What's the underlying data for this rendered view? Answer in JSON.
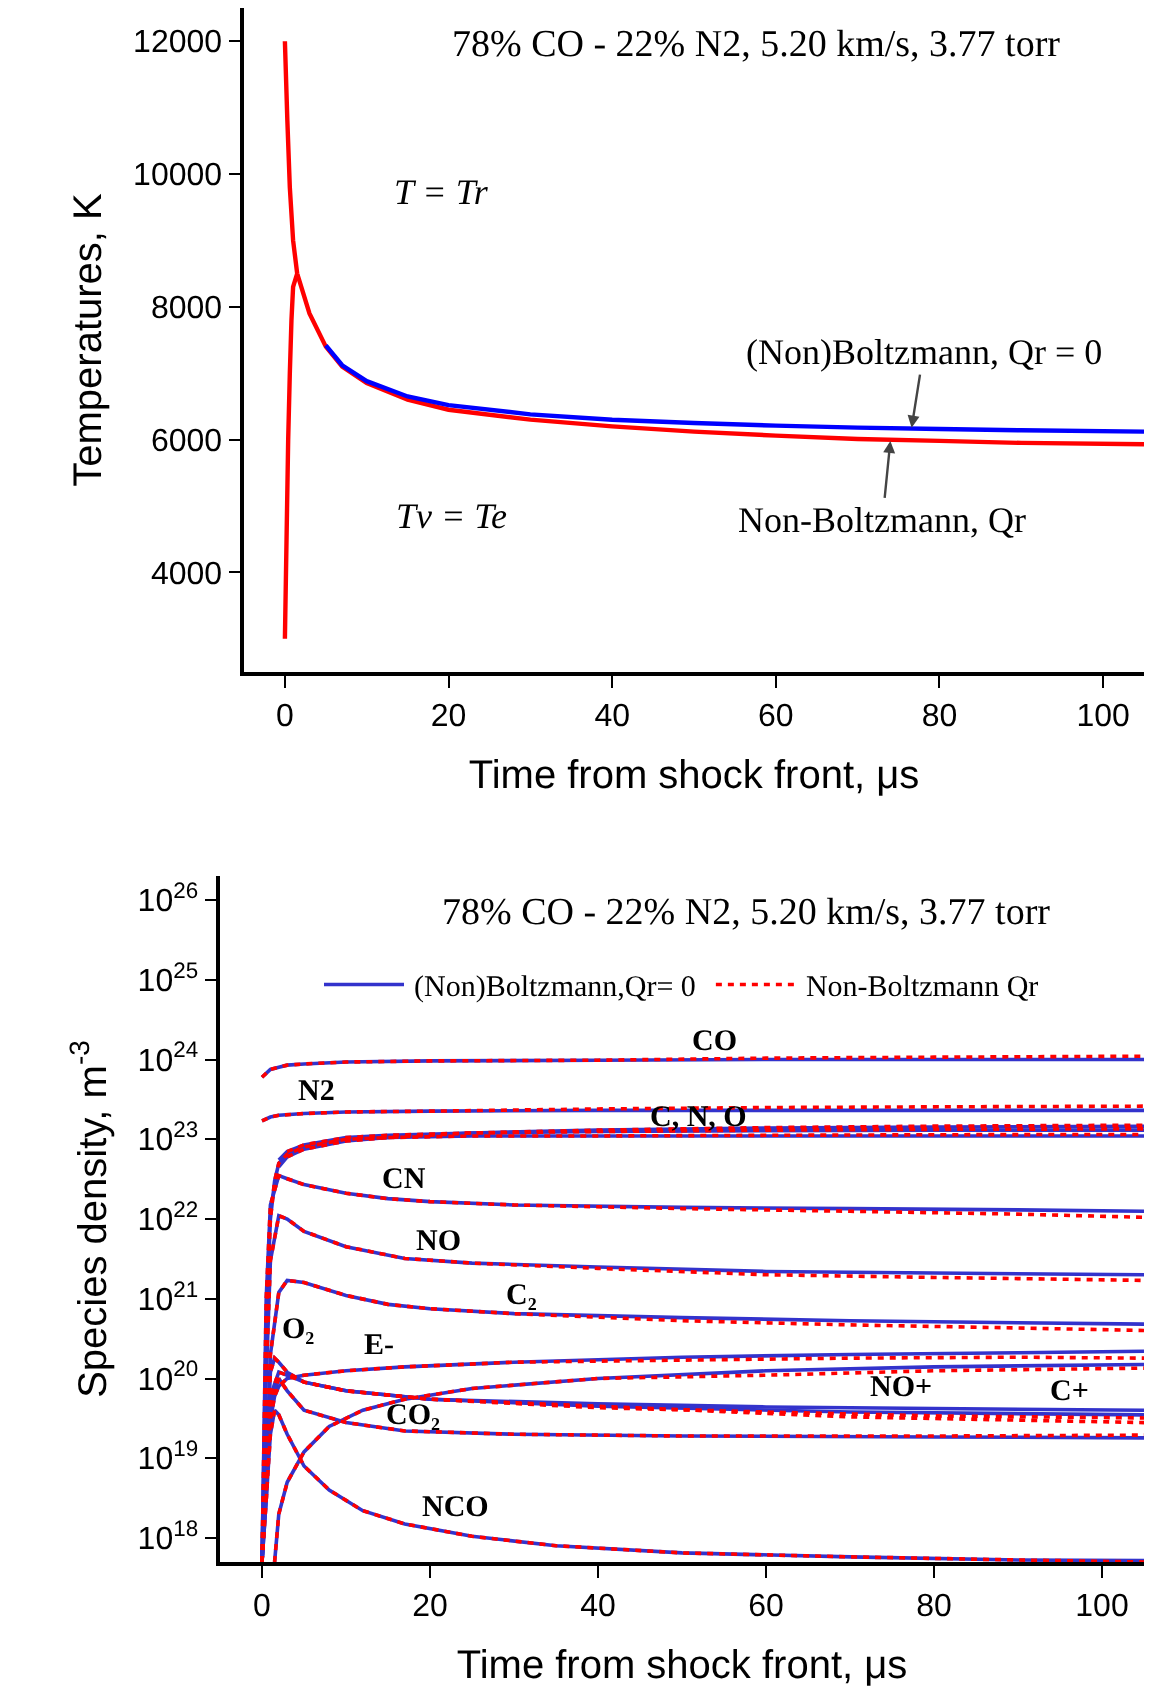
{
  "chart_data": [
    {
      "type": "line",
      "title": "78% CO - 22% N2, 5.20 km/s, 3.77 torr",
      "xlabel": "Time from shock front, μs",
      "ylabel": "Temperatures, K",
      "xlim": [
        -5,
        105
      ],
      "xticks": [
        0,
        20,
        40,
        60,
        80,
        100
      ],
      "ylim": [
        2500,
        12500
      ],
      "yticks": [
        4000,
        6000,
        8000,
        10000,
        12000
      ],
      "marker": "none",
      "line_style": "solid",
      "series": [
        {
          "color": "#ff0000",
          "x": [
            0,
            0.3,
            0.6,
            1,
            1.5,
            2,
            3,
            5,
            7,
            10,
            15,
            20,
            30,
            40,
            50,
            60,
            70,
            80,
            90,
            105
          ],
          "values": [
            12000,
            10800,
            9800,
            9000,
            8500,
            8300,
            7900,
            7400,
            7100,
            6850,
            6600,
            6450,
            6300,
            6200,
            6120,
            6060,
            6010,
            5980,
            5950,
            5930
          ]
        },
        {
          "color": "#ff0000",
          "x": [
            0,
            0.2,
            0.4,
            0.6,
            0.8,
            1,
            1.5
          ],
          "values": [
            3000,
            4500,
            6000,
            7000,
            7800,
            8300,
            8500
          ]
        },
        {
          "color": "#0000ff",
          "x": [
            5,
            7,
            10,
            15,
            20,
            30,
            40,
            50,
            60,
            70,
            80,
            90,
            105
          ],
          "values": [
            7420,
            7120,
            6880,
            6650,
            6520,
            6380,
            6300,
            6250,
            6210,
            6180,
            6160,
            6140,
            6120
          ]
        }
      ],
      "annotations": [
        "T = Tr",
        "Tv = Te",
        {
          "text": "(Non)Boltzmann, Qr = 0",
          "x": 76.6,
          "y": 6180
        },
        {
          "text": "Non-Boltzmann, Qr",
          "x": 74,
          "y": 5980
        }
      ]
    },
    {
      "type": "line",
      "title": "78% CO - 22% N2, 5.20 km/s, 3.77 torr",
      "xlabel": "Time from shock front, μs",
      "ylabel": "Species density, m$^{-3}$",
      "xlim": [
        -5,
        105
      ],
      "xticks": [
        0,
        20,
        40,
        60,
        80,
        100
      ],
      "ylim": [
        5e+17,
        2e+26
      ],
      "log": true,
      "yticks": [
        {
          "value": 1e+18,
          "label": "10$^{18}$"
        },
        {
          "value": 1e+19,
          "label": "10$^{19}$"
        },
        {
          "value": 1e+20,
          "label": "10$^{20}$"
        },
        {
          "value": 1e+21,
          "label": "10$^{21}$"
        },
        {
          "value": 1e+22,
          "label": "10$^{22}$"
        },
        {
          "value": 1e+23,
          "label": "10$^{23}$"
        },
        {
          "value": 1e+24,
          "label": "10$^{24}$"
        },
        {
          "value": 1e+25,
          "label": "10$^{25}$"
        },
        {
          "value": 1e+26,
          "label": "10$^{26}$"
        }
      ],
      "marker": "none",
      "legend": "top",
      "series": [
        {
          "name": "(Non)Boltzmann,Qr= 0",
          "color": "#3333cc",
          "line_style": "solid",
          "x": [
            0,
            1,
            2,
            3,
            5,
            10,
            20,
            40,
            60,
            80,
            105
          ],
          "values": [
            6e+23,
            7.5e+23,
            8e+23,
            8.5e+23,
            8.8e+23,
            9.3e+23,
            9.6e+23,
            9.8e+23,
            1e+24,
            1e+24,
            1e+24
          ]
        },
        {
          "color": "#3333cc",
          "line_style": "solid",
          "x": [
            0,
            1,
            2,
            5,
            10,
            20,
            40,
            60,
            80,
            105
          ],
          "values": [
            1.7e+23,
            1.9e+23,
            2e+23,
            2.1e+23,
            2.2e+23,
            2.25e+23,
            2.3e+23,
            2.3e+23,
            2.3e+23,
            2.3e+23
          ]
        },
        {
          "color": "#3333cc",
          "line_style": "solid",
          "x": [
            0,
            0.5,
            1,
            1.5,
            2,
            3,
            5,
            10,
            15,
            25,
            40,
            60,
            80,
            105
          ],
          "values": [
            5e+17,
            5e+20,
            1e+22,
            3e+22,
            5e+22,
            6.5e+22,
            8e+22,
            1e+23,
            1.05e+23,
            1.1e+23,
            1.1e+23,
            1.1e+23,
            1.1e+23,
            1.1e+23
          ]
        },
        {
          "color": "#3333cc",
          "line_style": "solid",
          "x": [
            2,
            3,
            5,
            10,
            15,
            25,
            40,
            60,
            80,
            105
          ],
          "values": [
            5.5e+22,
            7e+22,
            8.5e+22,
            1.05e+23,
            1.12e+23,
            1.2e+23,
            1.25e+23,
            1.28e+23,
            1.3e+23,
            1.3e+23
          ]
        },
        {
          "color": "#3333cc",
          "line_style": "solid",
          "x": [
            2,
            3,
            5,
            10,
            15,
            25,
            40,
            60,
            80,
            105
          ],
          "values": [
            4.5e+22,
            6e+22,
            7.5e+22,
            9.5e+22,
            1.05e+23,
            1.2e+23,
            1.3e+23,
            1.38e+23,
            1.42e+23,
            1.45e+23
          ]
        },
        {
          "color": "#3333cc",
          "line_style": "solid",
          "x": [
            0,
            0.5,
            1,
            2,
            3,
            5,
            10,
            15,
            20,
            30,
            50,
            70,
            90,
            105
          ],
          "values": [
            5e+17,
            1e+21,
            1.5e+22,
            3.5e+22,
            3.2e+22,
            2.7e+22,
            2.1e+22,
            1.8e+22,
            1.65e+22,
            1.5e+22,
            1.4e+22,
            1.35e+22,
            1.3e+22,
            1.25e+22
          ]
        },
        {
          "color": "#3333cc",
          "line_style": "solid",
          "x": [
            0,
            0.5,
            1,
            2,
            3,
            5,
            10,
            17,
            25,
            40,
            60,
            80,
            105
          ],
          "values": [
            5e+17,
            1e+20,
            3e+21,
            1.1e+22,
            1e+22,
            7e+21,
            4.5e+21,
            3.2e+21,
            2.8e+21,
            2.5e+21,
            2.2e+21,
            2.1e+21,
            2e+21
          ]
        },
        {
          "color": "#3333cc",
          "line_style": "solid",
          "x": [
            0,
            0.5,
            1,
            2,
            3,
            5,
            10,
            15,
            20,
            30,
            50,
            70,
            90,
            105
          ],
          "values": [
            5e+17,
            5e+18,
            2e+20,
            1.2e+21,
            1.7e+21,
            1.6e+21,
            1.1e+21,
            8.5e+20,
            7.5e+20,
            6.5e+20,
            5.8e+20,
            5.3e+20,
            5e+20,
            4.8e+20
          ]
        },
        {
          "color": "#3333cc",
          "line_style": "solid",
          "x": [
            0,
            0.5,
            1,
            1.5,
            2,
            3,
            5,
            10,
            20,
            40,
            70,
            105
          ],
          "values": [
            5e+17,
            1e+19,
            1.2e+20,
            1.8e+20,
            1.6e+20,
            1.2e+20,
            9e+19,
            7e+19,
            5.5e+19,
            4.5e+19,
            3.8e+19,
            3.5e+19
          ]
        },
        {
          "color": "#3333cc",
          "line_style": "solid",
          "x": [
            0,
            0.5,
            1,
            1.5,
            2,
            3,
            5,
            10,
            17,
            30,
            50,
            70,
            90,
            105
          ],
          "values": [
            5e+17,
            5e+18,
            3e+19,
            6e+19,
            8e+19,
            1e+20,
            1.1e+20,
            1.25e+20,
            1.4e+20,
            1.6e+20,
            1.85e+20,
            2e+20,
            2.1e+20,
            2.2e+20
          ]
        },
        {
          "color": "#3333cc",
          "line_style": "solid",
          "x": [
            1.5,
            2,
            3,
            5,
            8,
            12,
            17,
            25,
            40,
            60,
            80,
            105
          ],
          "values": [
            5e+17,
            2e+18,
            5e+18,
            1.2e+19,
            2.5e+19,
            4e+19,
            5.5e+19,
            7.5e+19,
            1e+20,
            1.25e+20,
            1.4e+20,
            1.5e+20
          ]
        },
        {
          "color": "#3333cc",
          "line_style": "solid",
          "x": [
            0,
            0.5,
            1,
            2,
            3,
            5,
            10,
            20,
            40,
            60,
            80,
            105
          ],
          "values": [
            5e+17,
            5e+18,
            6e+19,
            1.2e+20,
            1.1e+20,
            9e+19,
            7e+19,
            5.5e+19,
            4.8e+19,
            4.4e+19,
            4.2e+19,
            4e+19
          ]
        },
        {
          "color": "#3333cc",
          "line_style": "solid",
          "x": [
            0,
            0.5,
            1,
            2,
            3,
            5,
            10,
            17,
            30,
            50,
            80,
            105
          ],
          "values": [
            5e+17,
            3e+18,
            5e+19,
            1e+20,
            7e+19,
            4e+19,
            2.8e+19,
            2.2e+19,
            2e+19,
            1.9e+19,
            1.85e+19,
            1.8e+19
          ]
        },
        {
          "color": "#3333cc",
          "line_style": "solid",
          "x": [
            0,
            0.5,
            1,
            1.5,
            2,
            3,
            5,
            8,
            12,
            17,
            25,
            35,
            50,
            70,
            90,
            105
          ],
          "values": [
            5e+17,
            3e+18,
            2e+19,
            4e+19,
            3.5e+19,
            2e+19,
            8e+18,
            4e+18,
            2.2e+18,
            1.5e+18,
            1.05e+18,
            8e+17,
            6.5e+17,
            5.8e+17,
            5.3e+17,
            5.2e+17
          ]
        },
        {
          "name": "Non-Boltzmann Qr",
          "color": "#ff0000",
          "line_style": "dotted",
          "x": [
            0,
            1,
            2,
            3,
            5,
            10,
            20,
            40,
            60,
            80,
            105
          ],
          "values": [
            6e+23,
            7.5e+23,
            8e+23,
            8.5e+23,
            8.8e+23,
            9.3e+23,
            9.6e+23,
            9.8e+23,
            1.04e+24,
            1.07e+24,
            1.1e+24
          ]
        },
        {
          "color": "#ff0000",
          "line_style": "dotted",
          "x": [
            0,
            1,
            2,
            5,
            10,
            20,
            40,
            60,
            80,
            105
          ],
          "values": [
            1.7e+23,
            1.9e+23,
            2e+23,
            2.1e+23,
            2.2e+23,
            2.25e+23,
            2.4e+23,
            2.5e+23,
            2.55e+23,
            2.6e+23
          ]
        },
        {
          "color": "#ff0000",
          "line_style": "dotted",
          "x": [
            0.5,
            1,
            1.5,
            2,
            3,
            5,
            10,
            15,
            25,
            40,
            60,
            80,
            105
          ],
          "values": [
            5e+20,
            1e+22,
            3e+22,
            5e+22,
            6.5e+22,
            8e+22,
            1e+23,
            1.05e+23,
            1.1e+23,
            1.1e+23,
            1.12e+23,
            1.14e+23,
            1.15e+23
          ]
        },
        {
          "color": "#ff0000",
          "line_style": "dotted",
          "x": [
            3,
            5,
            10,
            15,
            25,
            40,
            60,
            80,
            105
          ],
          "values": [
            7e+22,
            8.5e+22,
            1.05e+23,
            1.12e+23,
            1.2e+23,
            1.25e+23,
            1.3e+23,
            1.33e+23,
            1.35e+23
          ]
        },
        {
          "color": "#ff0000",
          "line_style": "dotted",
          "x": [
            3,
            5,
            10,
            15,
            25,
            40,
            60,
            80,
            105
          ],
          "values": [
            6e+22,
            7.5e+22,
            9.5e+22,
            1.05e+23,
            1.2e+23,
            1.3e+23,
            1.4e+23,
            1.46e+23,
            1.5e+23
          ]
        },
        {
          "color": "#ff0000",
          "line_style": "dotted",
          "x": [
            0,
            0.5,
            1,
            2,
            3,
            5,
            10,
            15,
            20,
            30,
            50,
            70,
            90,
            105
          ],
          "values": [
            5e+17,
            1e+21,
            1.5e+22,
            3.5e+22,
            3.2e+22,
            2.7e+22,
            2.1e+22,
            1.8e+22,
            1.65e+22,
            1.5e+22,
            1.35e+22,
            1.25e+22,
            1.15e+22,
            1.05e+22
          ]
        },
        {
          "color": "#ff0000",
          "line_style": "dotted",
          "x": [
            0,
            0.5,
            1,
            2,
            3,
            5,
            10,
            17,
            25,
            40,
            60,
            80,
            105
          ],
          "values": [
            5e+17,
            1e+20,
            3e+21,
            1.1e+22,
            1e+22,
            7e+21,
            4.5e+21,
            3.2e+21,
            2.8e+21,
            2.4e+21,
            2e+21,
            1.85e+21,
            1.7e+21
          ]
        },
        {
          "color": "#ff0000",
          "line_style": "dotted",
          "x": [
            0,
            0.5,
            1,
            2,
            3,
            5,
            10,
            15,
            20,
            30,
            50,
            70,
            90,
            105
          ],
          "values": [
            5e+17,
            5e+18,
            2e+20,
            1.2e+21,
            1.7e+21,
            1.6e+21,
            1.1e+21,
            8.5e+20,
            7.5e+20,
            6.5e+20,
            5.3e+20,
            4.7e+20,
            4.3e+20,
            4e+20
          ]
        },
        {
          "color": "#ff0000",
          "line_style": "dotted",
          "x": [
            0,
            0.5,
            1,
            1.5,
            2,
            3,
            5,
            10,
            20,
            40,
            70,
            105
          ],
          "values": [
            5e+17,
            1e+19,
            1.2e+20,
            1.8e+20,
            1.6e+20,
            1.2e+20,
            9e+19,
            7e+19,
            5.5e+19,
            4.5e+19,
            3.3e+19,
            2.8e+19
          ]
        },
        {
          "color": "#ff0000",
          "line_style": "dotted",
          "x": [
            0,
            0.5,
            1,
            1.5,
            2,
            3,
            5,
            10,
            17,
            30,
            50,
            70,
            90,
            105
          ],
          "values": [
            5e+17,
            5e+18,
            3e+19,
            6e+19,
            8e+19,
            1e+20,
            1.1e+20,
            1.25e+20,
            1.4e+20,
            1.6e+20,
            1.7e+20,
            1.8e+20,
            1.85e+20,
            1.8e+20
          ]
        },
        {
          "color": "#ff0000",
          "line_style": "dotted",
          "x": [
            1.5,
            2,
            3,
            5,
            8,
            12,
            17,
            25,
            40,
            60,
            80,
            105
          ],
          "values": [
            5e+17,
            2e+18,
            5e+18,
            1.2e+19,
            2.5e+19,
            4e+19,
            5.5e+19,
            7.5e+19,
            1e+20,
            1.1e+20,
            1.25e+20,
            1.35e+20
          ]
        },
        {
          "color": "#ff0000",
          "line_style": "dotted",
          "x": [
            0,
            0.5,
            1,
            2,
            3,
            5,
            10,
            20,
            40,
            60,
            80,
            105
          ],
          "values": [
            5e+17,
            5e+18,
            6e+19,
            1.2e+20,
            1.1e+20,
            9e+19,
            7e+19,
            5.5e+19,
            4.3e+19,
            3.8e+19,
            3.4e+19,
            3.2e+19
          ]
        },
        {
          "color": "#ff0000",
          "line_style": "dotted",
          "x": [
            0,
            0.5,
            1,
            2,
            3,
            5,
            10,
            17,
            30,
            50,
            80,
            105
          ],
          "values": [
            5e+17,
            3e+18,
            5e+19,
            1e+20,
            7e+19,
            4e+19,
            2.8e+19,
            2.2e+19,
            2e+19,
            1.9e+19,
            1.9e+19,
            1.95e+19
          ]
        },
        {
          "color": "#ff0000",
          "line_style": "dotted",
          "x": [
            0.5,
            1,
            1.5,
            2,
            3,
            5,
            8,
            12,
            17,
            25,
            35,
            50,
            70,
            90,
            105
          ],
          "values": [
            3e+18,
            2e+19,
            4e+19,
            3.5e+19,
            2e+19,
            8e+18,
            4e+18,
            2.2e+18,
            1.5e+18,
            1.05e+18,
            8e+17,
            6.5e+17,
            5.8e+17,
            5.3e+17,
            5e+17
          ]
        }
      ],
      "annotations": [
        {
          "text": "CO",
          "x": 54,
          "y": 1e+24
        },
        {
          "text": "N2",
          "x": 6.5,
          "y": 2.3e+23
        },
        {
          "text": "C, N, O",
          "x": 52,
          "y": 1.1e+23
        },
        {
          "text": "CN",
          "x": 17,
          "y": 1.8e+22
        },
        {
          "text": "NO",
          "x": 21,
          "y": 3e+21
        },
        {
          "text": "C₂",
          "x": 31,
          "y": 6.5e+20
        },
        {
          "text": "O₂",
          "x": 2,
          "y": 1.6e+20
        },
        {
          "text": "E-",
          "x": 14,
          "y": 1.5e+20
        },
        {
          "text": "C+",
          "x": 96,
          "y": 1.5e+20
        },
        {
          "text": "NO+",
          "x": 76,
          "y": 4.5e+19
        },
        {
          "text": "CO₂",
          "x": 18,
          "y": 2e+19
        },
        {
          "text": "NCO",
          "x": 23,
          "y": 1.4e+18
        }
      ]
    }
  ]
}
